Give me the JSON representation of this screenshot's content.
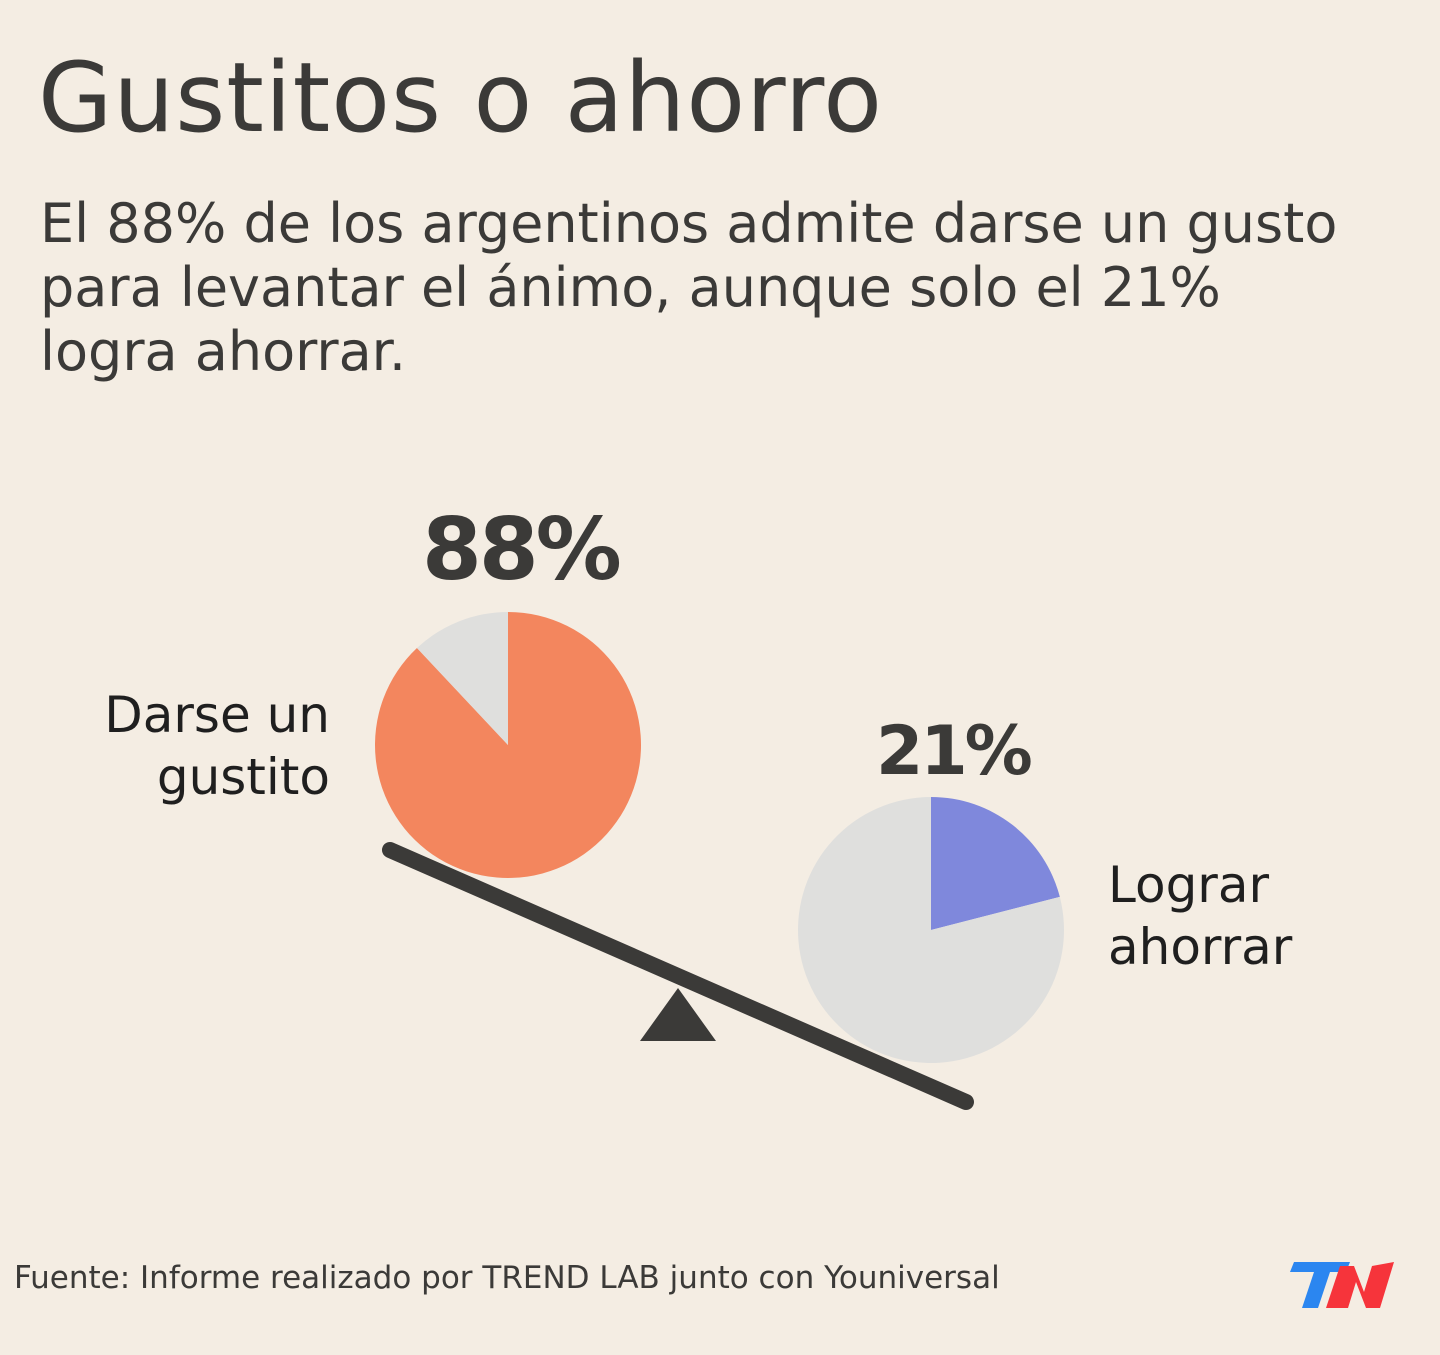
{
  "title": "Gustitos o ahorro",
  "subtitle": "El 88% de los argentinos admite darse un gusto para levantar el ánimo, aunque solo el 21% logra ahorrar.",
  "chart_data": [
    {
      "type": "pie",
      "label": "Darse un gustito",
      "data_label": "88%",
      "values": [
        88,
        12
      ],
      "colors": [
        "#f3865e",
        "#dfdfdd"
      ]
    },
    {
      "type": "pie",
      "label": "Lograr ahorrar",
      "data_label": "21%",
      "values": [
        21,
        79
      ],
      "colors": [
        "#7f88dc",
        "#dfdfdd"
      ]
    }
  ],
  "label1_lines": [
    "Darse un",
    "gustito"
  ],
  "label2_lines": [
    "Lograr",
    "ahorrar"
  ],
  "source": "Fuente: Informe realizado por TREND LAB junto con Youniversal",
  "logo": {
    "text": "TN",
    "colors": [
      "#2b86f0",
      "#f6343b"
    ]
  },
  "colors": {
    "background": "#f4ede3",
    "text": "#3b3a38",
    "beam": "#3b3a38"
  }
}
